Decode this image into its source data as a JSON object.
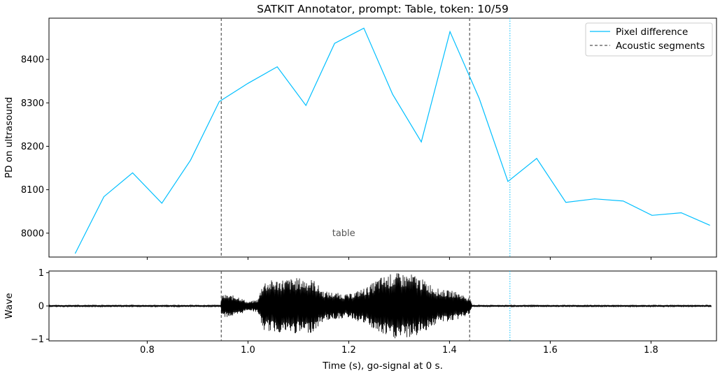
{
  "title": "SATKIT Annotator, prompt: Table, token: 10/59",
  "colors": {
    "pd_line": "#00bfff",
    "wave": "#000000",
    "segments": "#555555",
    "cursor": "#00bfff"
  },
  "chart_data": [
    {
      "type": "line",
      "ylabel": "PD on ultrasound",
      "xlim": [
        0.605,
        1.93
      ],
      "ylim": [
        7945,
        8495
      ],
      "yticks": [
        8000,
        8100,
        8200,
        8300,
        8400
      ],
      "ytick_labels": [
        "8000",
        "8100",
        "8200",
        "8300",
        "8400"
      ],
      "legend_position": "top-right",
      "legend": [
        {
          "label": "Pixel difference",
          "style": "solid",
          "color": "#00bfff"
        },
        {
          "label": "Acoustic segments",
          "style": "dashed",
          "color": "#555555"
        }
      ],
      "series": [
        {
          "name": "Pixel difference",
          "x": [
            0.657,
            0.714,
            0.771,
            0.829,
            0.886,
            0.943,
            1.0,
            1.058,
            1.115,
            1.172,
            1.23,
            1.287,
            1.344,
            1.401,
            1.459,
            1.516,
            1.573,
            1.631,
            1.688,
            1.745,
            1.802,
            1.86,
            1.917
          ],
          "y": [
            7953,
            8084,
            8139,
            8069,
            8168,
            8303,
            8345,
            8383,
            8294,
            8437,
            8472,
            8320,
            8210,
            8464,
            8310,
            8119,
            8172,
            8071,
            8079,
            8074,
            8041,
            8047,
            8018
          ]
        }
      ],
      "segment_lines": [
        0.947,
        1.44
      ],
      "cursor_line": 1.52,
      "annotation": {
        "text": "table",
        "x": 1.19,
        "y": 8000
      }
    },
    {
      "type": "line",
      "ylabel": "Wave",
      "xlabel": "Time (s), go-signal at 0 s.",
      "xlim": [
        0.605,
        1.93
      ],
      "ylim": [
        -1.05,
        1.05
      ],
      "yticks": [
        -1,
        0,
        1
      ],
      "ytick_labels": [
        "−1",
        "0",
        "1"
      ],
      "xticks": [
        0.8,
        1.0,
        1.2,
        1.4,
        1.6,
        1.8
      ],
      "xtick_labels": [
        "0.8",
        "1.0",
        "1.2",
        "1.4",
        "1.6",
        "1.8"
      ],
      "series": [
        {
          "name": "Wave",
          "x_range": [
            0.605,
            1.92
          ],
          "amplitude_envelope": {
            "t": [
              0.605,
              0.946,
              0.948,
              0.98,
              1.0,
              1.02,
              1.03,
              1.06,
              1.1,
              1.13,
              1.15,
              1.2,
              1.24,
              1.26,
              1.29,
              1.33,
              1.38,
              1.41,
              1.44,
              1.445,
              1.92
            ],
            "a": [
              0.03,
              0.03,
              0.35,
              0.3,
              0.12,
              0.2,
              0.75,
              0.8,
              0.85,
              0.8,
              0.45,
              0.35,
              0.6,
              0.85,
              1.0,
              0.95,
              0.5,
              0.45,
              0.25,
              0.03,
              0.03
            ]
          }
        }
      ],
      "segment_lines": [
        0.947,
        1.44
      ],
      "cursor_line": 1.52
    }
  ]
}
